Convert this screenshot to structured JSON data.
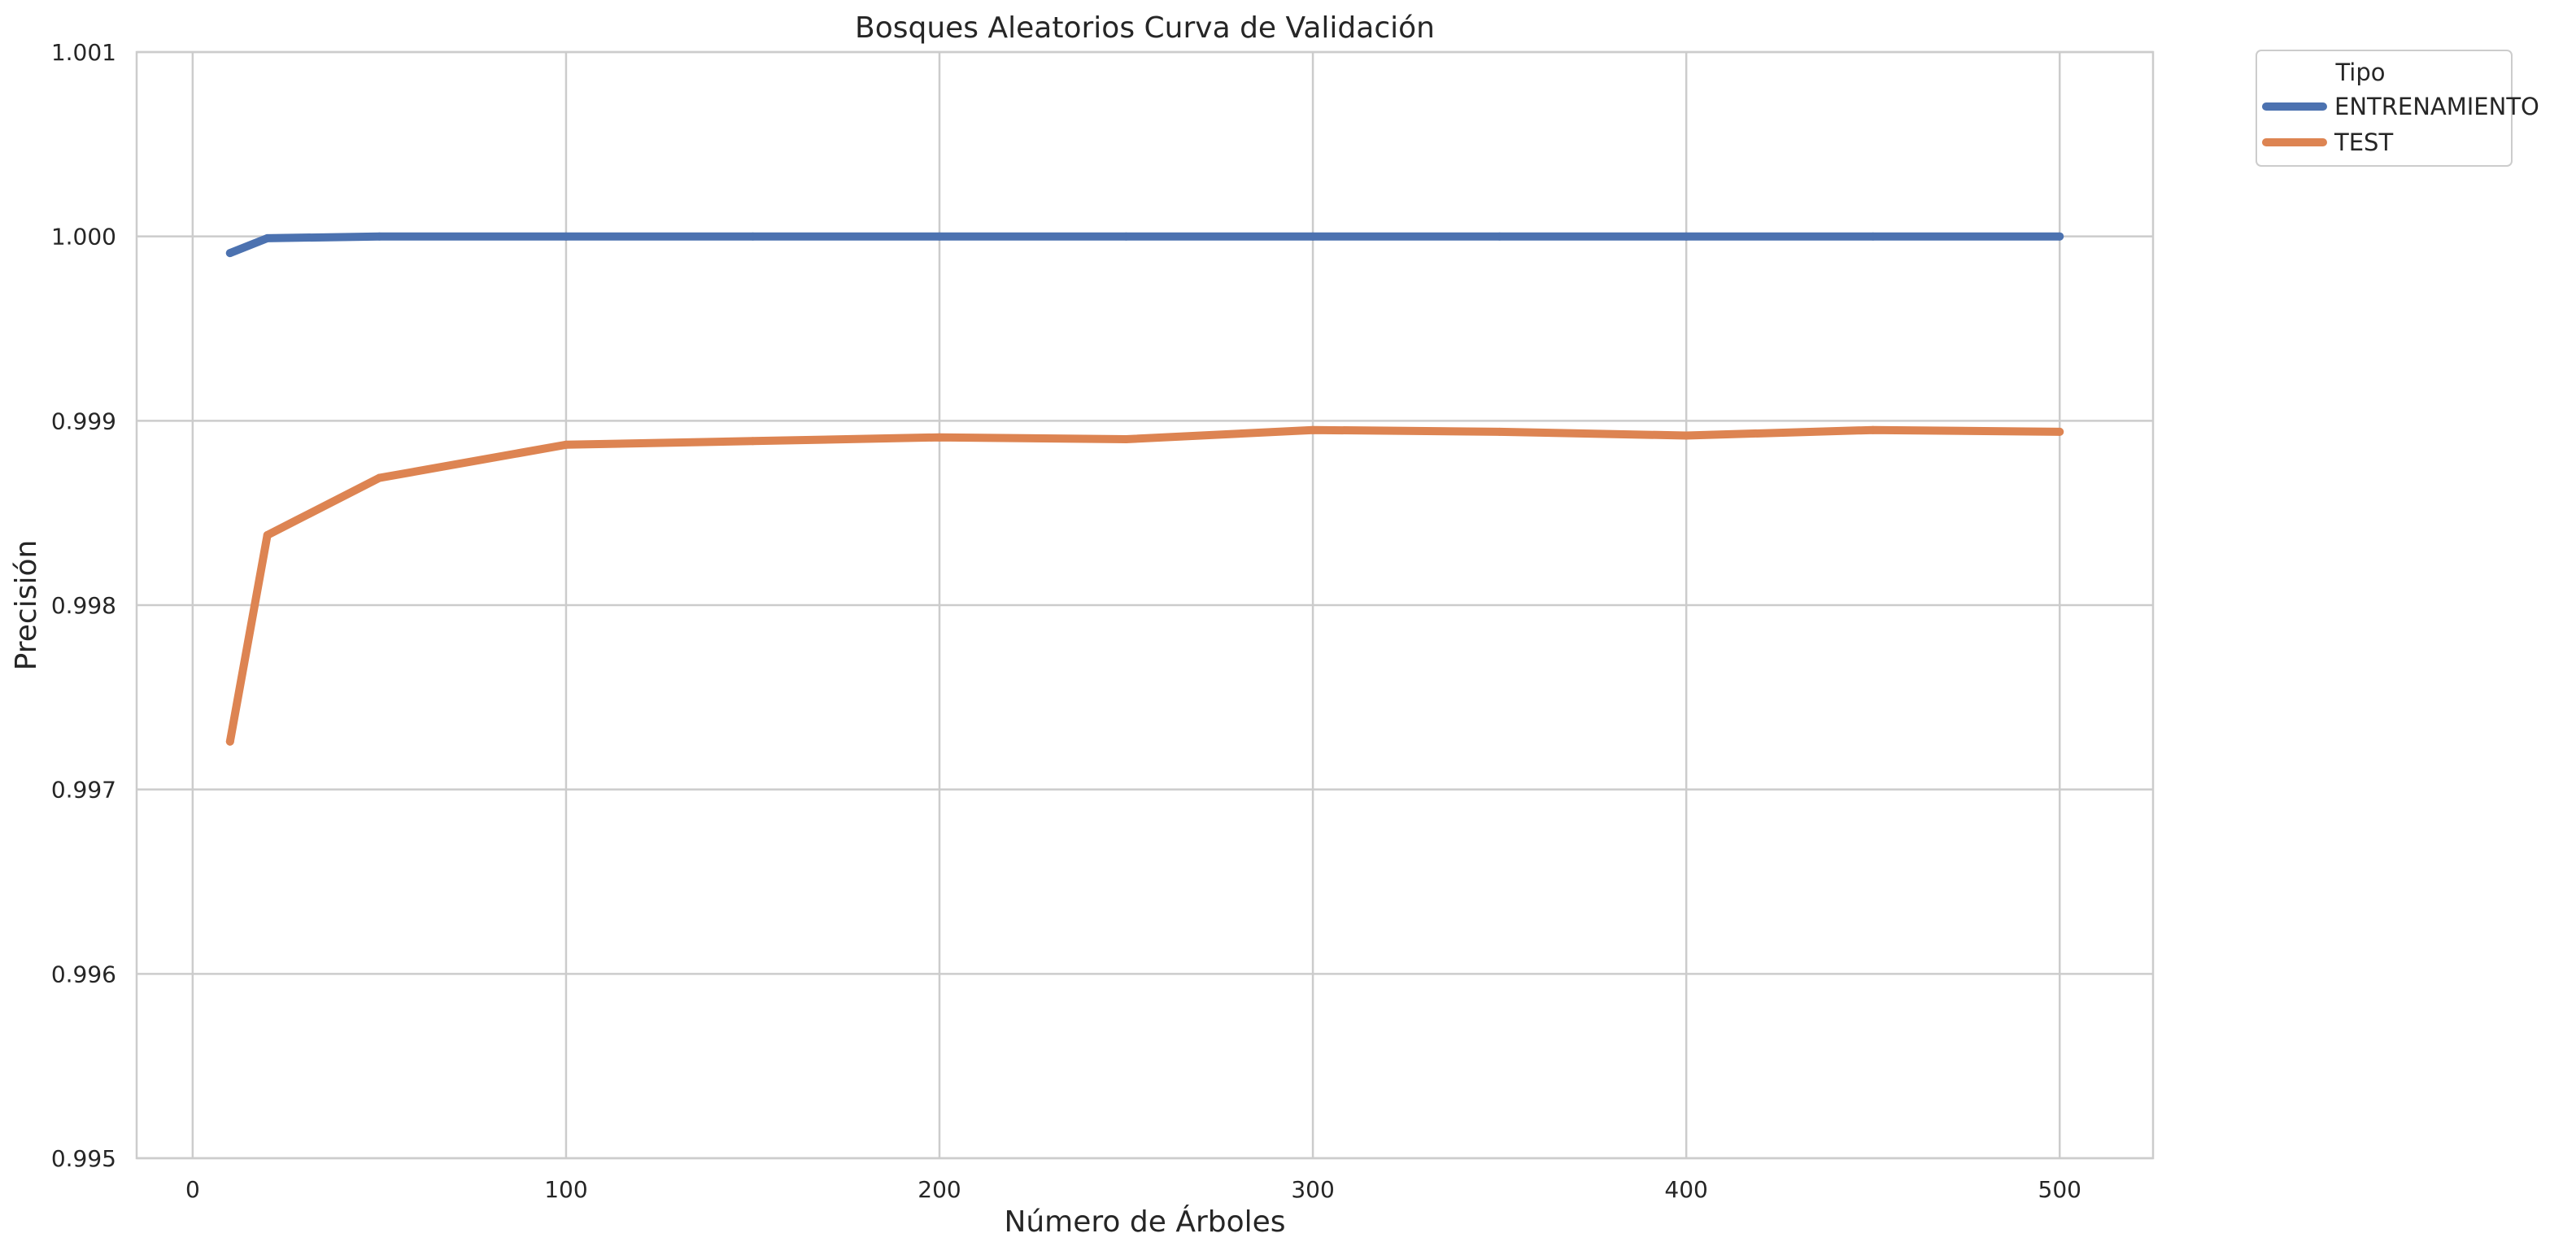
{
  "chart_data": {
    "type": "line",
    "title": "Bosques Aleatorios Curva de Validación",
    "xlabel": "Número de Árboles",
    "ylabel": "Precisión",
    "xlim": [
      -15,
      525
    ],
    "ylim": [
      0.995,
      1.001
    ],
    "xticks": [
      0,
      100,
      200,
      300,
      400,
      500
    ],
    "xtick_labels": [
      "0",
      "100",
      "200",
      "300",
      "400",
      "500"
    ],
    "yticks": [
      0.995,
      0.996,
      0.997,
      0.998,
      0.999,
      1.0,
      1.001
    ],
    "ytick_labels": [
      "0.995",
      "0.996",
      "0.997",
      "0.998",
      "0.999",
      "1.000",
      "1.001"
    ],
    "grid": true,
    "legend": {
      "title": "Tipo",
      "placement": "outside-top-right"
    },
    "x": [
      10,
      20,
      50,
      100,
      150,
      200,
      250,
      300,
      350,
      400,
      450,
      500
    ],
    "series": [
      {
        "name": "ENTRENAMIENTO",
        "color": "#4c72b0",
        "values": [
          0.99991,
          0.99999,
          1.0,
          1.0,
          1.0,
          1.0,
          1.0,
          1.0,
          1.0,
          1.0,
          1.0,
          1.0
        ]
      },
      {
        "name": "TEST",
        "color": "#dd8452",
        "values": [
          0.99726,
          0.99838,
          0.99869,
          0.99887,
          0.99889,
          0.99891,
          0.9989,
          0.99895,
          0.99894,
          0.99892,
          0.99895,
          0.99894
        ]
      }
    ]
  }
}
